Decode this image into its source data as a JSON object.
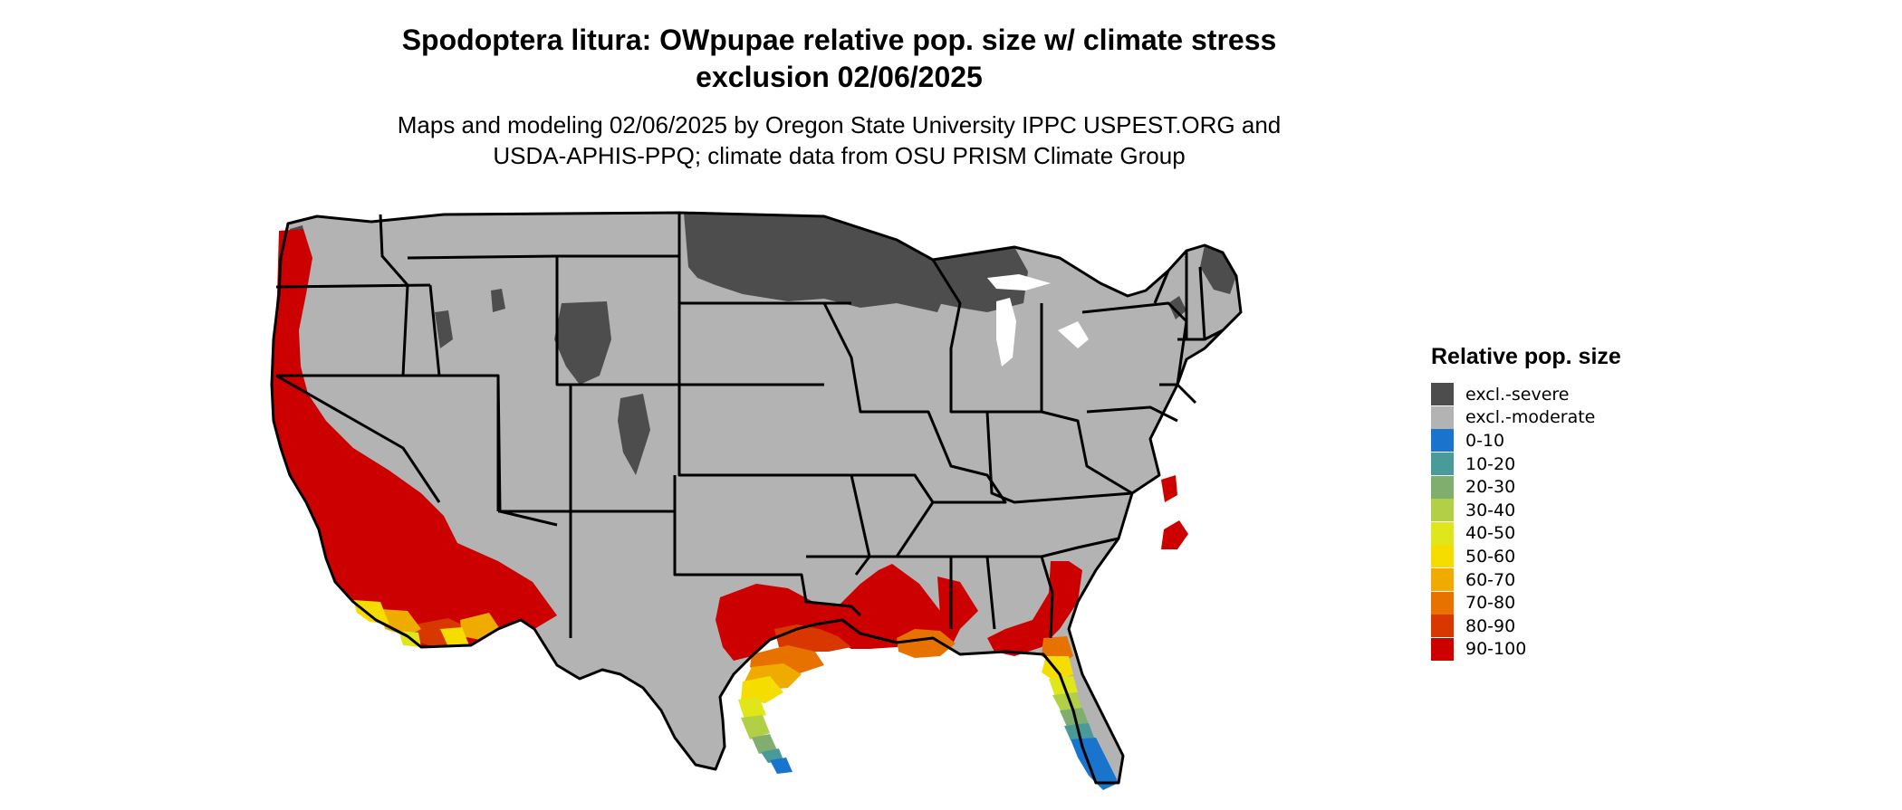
{
  "title": {
    "line1": "Spodoptera litura: OWpupae relative pop. size w/ climate stress",
    "line2": "exclusion 02/06/2025"
  },
  "subtitle": {
    "line1": "Maps and modeling 02/06/2025 by Oregon State University IPPC USPEST.ORG and",
    "line2": "USDA-APHIS-PPQ; climate data from OSU PRISM Climate Group"
  },
  "legend": {
    "title": "Relative pop. size",
    "items": [
      {
        "label": "excl.-severe",
        "color": "#4d4d4d"
      },
      {
        "label": "excl.-moderate",
        "color": "#b3b3b3"
      },
      {
        "label": "0-10",
        "color": "#1874cd"
      },
      {
        "label": "10-20",
        "color": "#4a9a9a"
      },
      {
        "label": "20-30",
        "color": "#7fae6e"
      },
      {
        "label": "30-40",
        "color": "#b2d045"
      },
      {
        "label": "40-50",
        "color": "#dfe61a"
      },
      {
        "label": "50-60",
        "color": "#f5dd00"
      },
      {
        "label": "60-70",
        "color": "#f0ab00"
      },
      {
        "label": "70-80",
        "color": "#e87200"
      },
      {
        "label": "80-90",
        "color": "#d83800"
      },
      {
        "label": "90-100",
        "color": "#cd0000"
      }
    ]
  },
  "map": {
    "region": "Conterminous United States",
    "boundary_color": "#000000"
  }
}
